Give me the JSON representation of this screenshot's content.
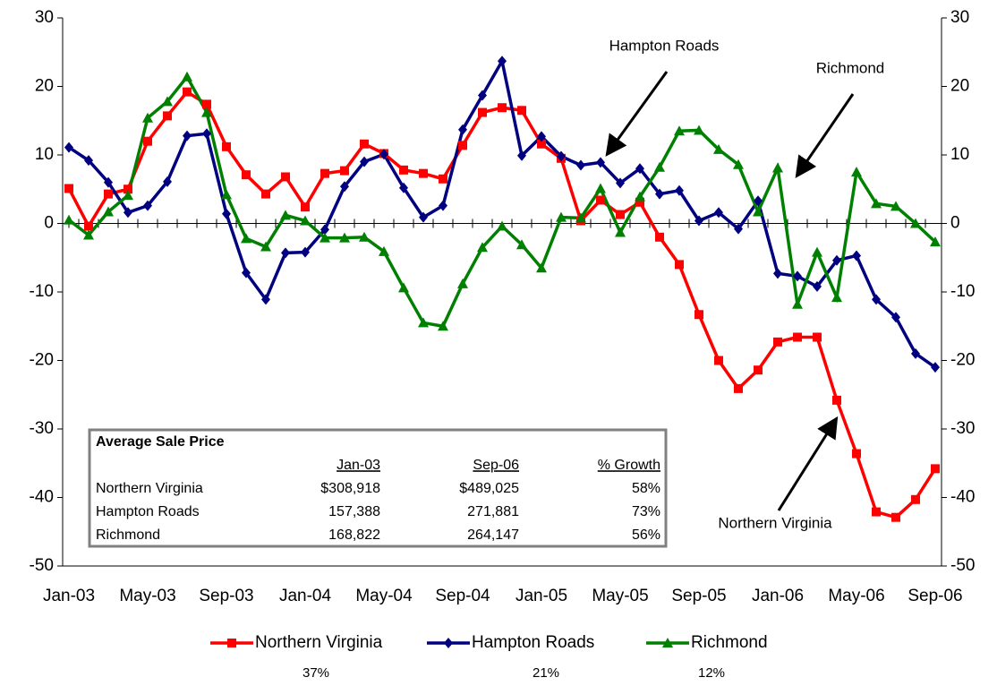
{
  "chart_data": {
    "type": "line",
    "categories": [
      "Jan-03",
      null,
      null,
      null,
      "May-03",
      null,
      null,
      null,
      "Sep-03",
      null,
      null,
      null,
      "Jan-04",
      null,
      null,
      null,
      "May-04",
      null,
      null,
      null,
      "Sep-04",
      null,
      null,
      null,
      "Jan-05",
      null,
      null,
      null,
      "May-05",
      null,
      null,
      null,
      "Sep-05",
      null,
      null,
      null,
      "Jan-06",
      null,
      null,
      null,
      "May-06",
      null,
      null,
      null,
      "Sep-06"
    ],
    "series": [
      {
        "name": "Northern Virginia",
        "color": "#ff0000",
        "marker": "square",
        "note": "37%",
        "values": [
          5.1,
          -0.4,
          4.3,
          5.0,
          12.0,
          15.7,
          19.2,
          17.4,
          11.2,
          7.1,
          4.3,
          6.8,
          2.4,
          7.3,
          7.7,
          11.6,
          10.2,
          7.8,
          7.3,
          6.5,
          11.4,
          16.2,
          16.9,
          16.5,
          11.6,
          9.5,
          0.4,
          3.4,
          1.3,
          3.1,
          -2.0,
          -6.0,
          -13.3,
          -20.0,
          -24.1,
          -21.4,
          -17.3,
          -16.6,
          -16.6,
          -25.8,
          -33.6,
          -42.1,
          -42.9,
          -40.3,
          -35.8
        ]
      },
      {
        "name": "Hampton Roads",
        "color": "#000080",
        "marker": "diamond",
        "note": "21%",
        "values": [
          11.1,
          9.2,
          6.0,
          1.6,
          2.6,
          6.1,
          12.8,
          13.1,
          1.4,
          -7.2,
          -11.1,
          -4.3,
          -4.2,
          -0.9,
          5.4,
          9.0,
          10.1,
          5.2,
          0.9,
          2.6,
          13.7,
          18.7,
          23.7,
          9.9,
          12.7,
          9.8,
          8.5,
          8.9,
          5.9,
          8.0,
          4.3,
          4.8,
          0.4,
          1.6,
          -0.8,
          3.3,
          -7.3,
          -7.7,
          -9.2,
          -5.4,
          -4.7,
          -11.1,
          -13.7,
          -19.0,
          -21.0
        ]
      },
      {
        "name": "Richmond",
        "color": "#008000",
        "marker": "triangle",
        "note": "12%",
        "values": [
          0.5,
          -1.7,
          1.7,
          4.1,
          15.4,
          17.8,
          21.4,
          16.2,
          4.2,
          -2.2,
          -3.4,
          1.2,
          0.4,
          -2.1,
          -2.1,
          -2.0,
          -4.1,
          -9.4,
          -14.5,
          -15.0,
          -8.8,
          -3.5,
          -0.4,
          -3.1,
          -6.5,
          0.9,
          0.8,
          5.1,
          -1.3,
          3.9,
          8.2,
          13.5,
          13.6,
          10.8,
          8.6,
          1.7,
          8.1,
          -11.8,
          -4.2,
          -10.8,
          7.5,
          2.9,
          2.5,
          0.0,
          -2.7
        ]
      }
    ],
    "ylim": [
      -50,
      30
    ],
    "yticks": [
      -50,
      -40,
      -30,
      -20,
      -10,
      0,
      10,
      20,
      30
    ],
    "y2lim": [
      -50,
      30
    ],
    "y2ticks": [
      -50,
      -40,
      -30,
      -20,
      -10,
      0,
      10,
      20,
      30
    ],
    "grid": false,
    "legend": "bottom",
    "annotations": [
      {
        "text": "Hampton Roads"
      },
      {
        "text": "Richmond"
      },
      {
        "text": "Northern Virginia"
      }
    ],
    "table": {
      "title": "Average Sale Price",
      "columns": [
        "Jan-03",
        "Sep-06",
        "% Growth"
      ],
      "rows": [
        {
          "label": "Northern Virginia",
          "cells": [
            "$308,918",
            "$489,025",
            "58%"
          ]
        },
        {
          "label": "Hampton Roads",
          "cells": [
            "157,388",
            "271,881",
            "73%"
          ]
        },
        {
          "label": "Richmond",
          "cells": [
            "168,822",
            "264,147",
            "56%"
          ]
        }
      ]
    }
  }
}
